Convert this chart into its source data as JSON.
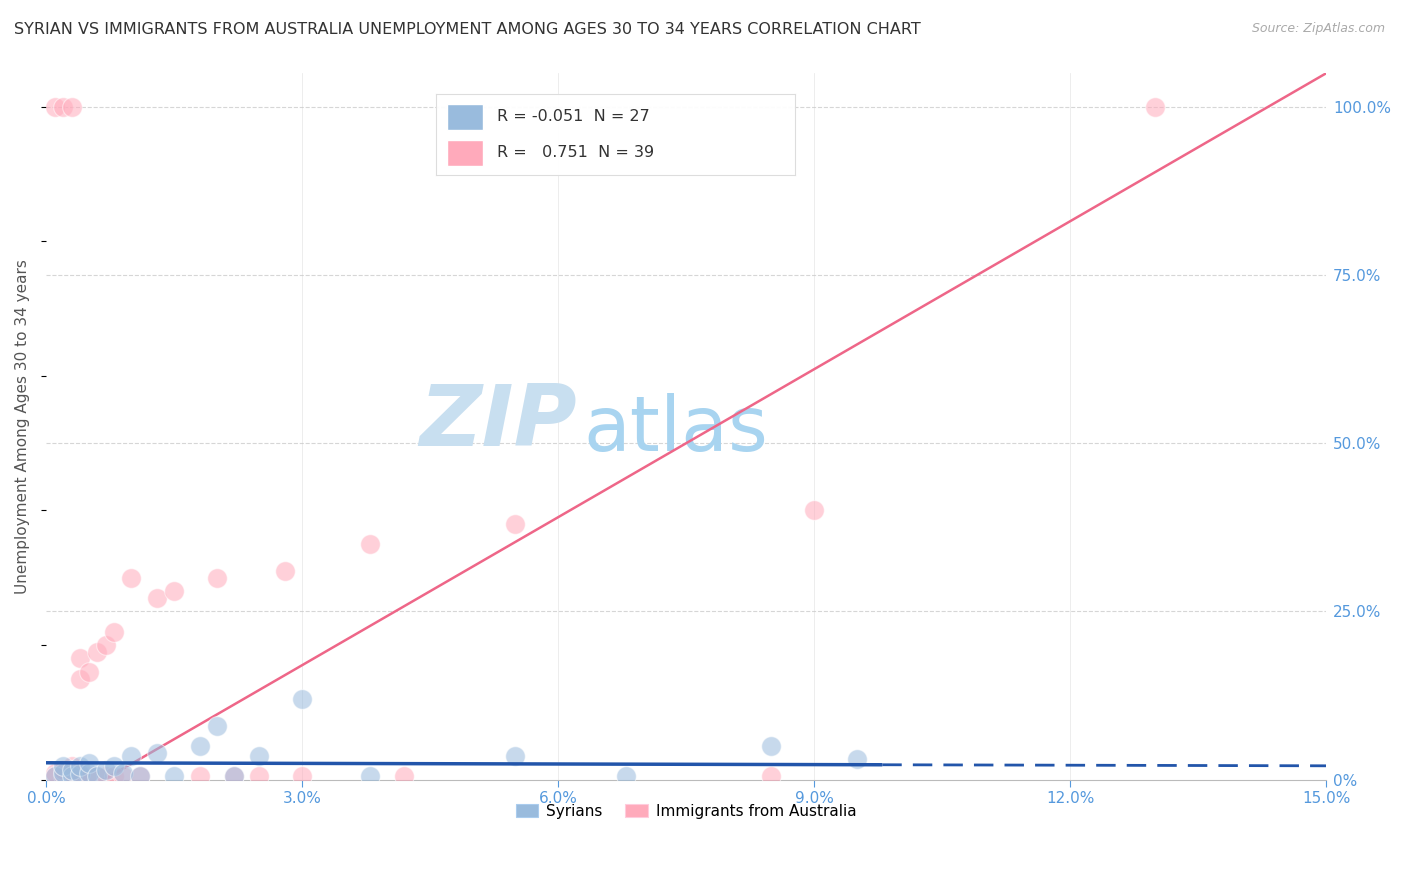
{
  "title": "SYRIAN VS IMMIGRANTS FROM AUSTRALIA UNEMPLOYMENT AMONG AGES 30 TO 34 YEARS CORRELATION CHART",
  "source": "Source: ZipAtlas.com",
  "ylabel": "Unemployment Among Ages 30 to 34 years",
  "xlim": [
    0.0,
    0.15
  ],
  "ylim": [
    0.0,
    1.05
  ],
  "xtick_vals": [
    0.0,
    0.03,
    0.06,
    0.09,
    0.12,
    0.15
  ],
  "xtick_labels": [
    "0.0%",
    "3.0%",
    "6.0%",
    "9.0%",
    "12.0%",
    "15.0%"
  ],
  "ytick_vals": [
    0.0,
    0.25,
    0.5,
    0.75,
    1.0
  ],
  "ytick_labels": [
    "0%",
    "25.0%",
    "50.0%",
    "75.0%",
    "100.0%"
  ],
  "watermark_zip": "ZIP",
  "watermark_atlas": "atlas",
  "legend_label1": "Syrians",
  "legend_label2": "Immigrants from Australia",
  "r1": "-0.051",
  "n1": "27",
  "r2": "0.751",
  "n2": "39",
  "syrians_x": [
    0.001,
    0.002,
    0.002,
    0.003,
    0.003,
    0.004,
    0.004,
    0.005,
    0.005,
    0.006,
    0.007,
    0.008,
    0.009,
    0.01,
    0.011,
    0.013,
    0.015,
    0.018,
    0.02,
    0.022,
    0.025,
    0.03,
    0.038,
    0.055,
    0.068,
    0.085,
    0.095
  ],
  "syrians_y": [
    0.005,
    0.01,
    0.02,
    0.005,
    0.015,
    0.008,
    0.02,
    0.01,
    0.025,
    0.005,
    0.015,
    0.02,
    0.01,
    0.035,
    0.005,
    0.04,
    0.005,
    0.05,
    0.08,
    0.005,
    0.035,
    0.12,
    0.005,
    0.035,
    0.005,
    0.05,
    0.03
  ],
  "australia_x": [
    0.001,
    0.001,
    0.001,
    0.002,
    0.002,
    0.002,
    0.003,
    0.003,
    0.003,
    0.003,
    0.004,
    0.004,
    0.004,
    0.004,
    0.005,
    0.005,
    0.006,
    0.006,
    0.007,
    0.007,
    0.008,
    0.008,
    0.009,
    0.01,
    0.011,
    0.013,
    0.015,
    0.018,
    0.02,
    0.022,
    0.025,
    0.028,
    0.03,
    0.038,
    0.042,
    0.055,
    0.085,
    0.09,
    0.13
  ],
  "australia_y": [
    1.0,
    0.005,
    0.01,
    1.0,
    0.005,
    0.015,
    0.005,
    0.01,
    0.02,
    1.0,
    0.005,
    0.15,
    0.18,
    0.01,
    0.16,
    0.005,
    0.19,
    0.005,
    0.2,
    0.005,
    0.22,
    0.005,
    0.005,
    0.3,
    0.005,
    0.27,
    0.28,
    0.005,
    0.3,
    0.005,
    0.005,
    0.31,
    0.005,
    0.35,
    0.005,
    0.38,
    0.005,
    0.4,
    1.0
  ],
  "blue_color": "#99bbdd",
  "pink_color": "#ffaabb",
  "blue_line_color": "#2255aa",
  "pink_line_color": "#ee6688",
  "background_color": "#ffffff",
  "grid_color": "#cccccc",
  "title_color": "#333333",
  "right_tick_color": "#5599dd",
  "watermark_color": "#ddeeff"
}
